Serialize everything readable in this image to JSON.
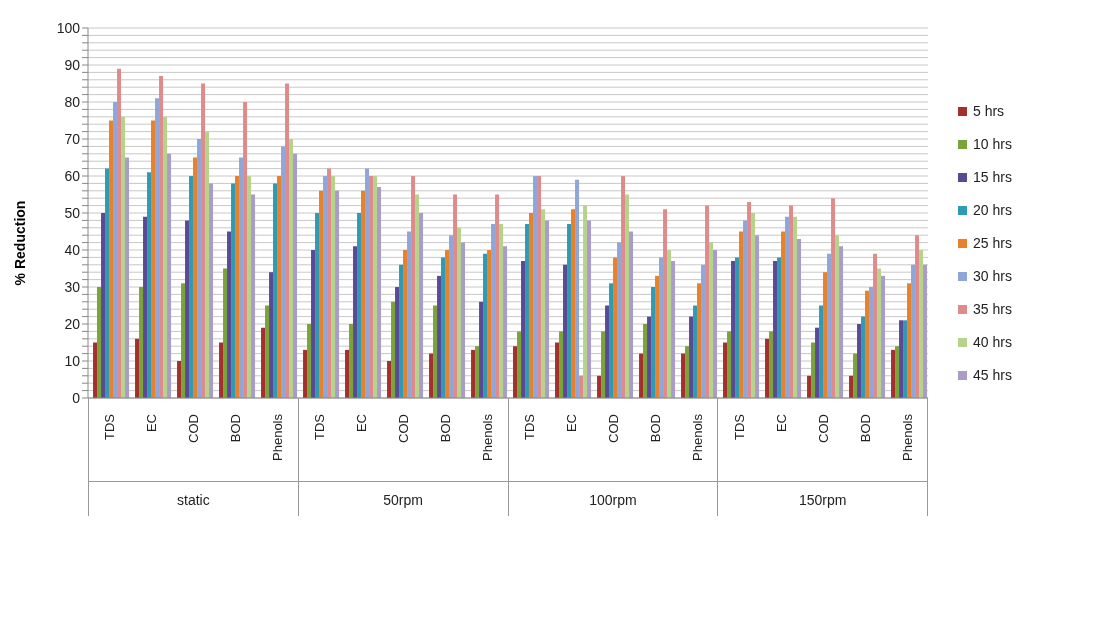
{
  "chart_data": {
    "type": "bar",
    "ylabel": "% Reduction",
    "categories": [
      "TDS",
      "EC",
      "COD",
      "BOD",
      "Phenols",
      "TDS",
      "EC",
      "COD",
      "BOD",
      "Phenols",
      "TDS",
      "EC",
      "COD",
      "BOD",
      "Phenols",
      "TDS",
      "EC",
      "COD",
      "BOD",
      "Phenols"
    ],
    "annotations": [
      "static",
      "50rpm",
      "100rpm",
      "150rpm"
    ],
    "series": [
      {
        "name": "5 hrs",
        "color": "#a3302c",
        "values": [
          15,
          16,
          10,
          15,
          19,
          13,
          13,
          10,
          12,
          13,
          14,
          15,
          6,
          12,
          12,
          15,
          16,
          6,
          6,
          13
        ]
      },
      {
        "name": "10 hrs",
        "color": "#7aa33c",
        "values": [
          30,
          30,
          31,
          35,
          25,
          20,
          20,
          26,
          25,
          14,
          18,
          18,
          18,
          20,
          14,
          18,
          18,
          15,
          12,
          14
        ]
      },
      {
        "name": "15 hrs",
        "color": "#5a4a93",
        "values": [
          50,
          49,
          48,
          45,
          34,
          40,
          41,
          30,
          33,
          26,
          37,
          36,
          25,
          22,
          22,
          37,
          37,
          19,
          20,
          21
        ]
      },
      {
        "name": "20 hrs",
        "color": "#2e9ab4",
        "values": [
          62,
          61,
          60,
          58,
          58,
          50,
          50,
          36,
          38,
          39,
          47,
          47,
          31,
          30,
          25,
          38,
          38,
          25,
          22,
          21
        ]
      },
      {
        "name": "25 hrs",
        "color": "#e8812c",
        "values": [
          75,
          75,
          65,
          60,
          60,
          56,
          56,
          40,
          40,
          40,
          50,
          51,
          38,
          33,
          31,
          45,
          45,
          34,
          29,
          31
        ]
      },
      {
        "name": "30 hrs",
        "color": "#8ea6d8",
        "values": [
          80,
          81,
          70,
          65,
          68,
          60,
          62,
          45,
          44,
          47,
          60,
          59,
          42,
          38,
          36,
          48,
          49,
          39,
          30,
          36
        ]
      },
      {
        "name": "35 hrs",
        "color": "#e08b8b",
        "values": [
          89,
          87,
          85,
          80,
          85,
          62,
          60,
          60,
          55,
          55,
          60,
          6,
          60,
          51,
          52,
          53,
          52,
          54,
          39,
          44
        ]
      },
      {
        "name": "40 hrs",
        "color": "#b6d38c",
        "values": [
          76,
          76,
          72,
          60,
          70,
          60,
          60,
          55,
          46,
          47,
          51,
          52,
          55,
          40,
          42,
          50,
          49,
          44,
          35,
          40
        ]
      },
      {
        "name": "45 hrs",
        "color": "#a99cc9",
        "values": [
          65,
          66,
          58,
          55,
          66,
          56,
          57,
          50,
          42,
          41,
          48,
          48,
          45,
          37,
          40,
          44,
          43,
          41,
          33,
          36
        ]
      }
    ],
    "ylim": [
      0,
      100
    ],
    "yticks": [
      0,
      {
        "value": 2,
        "label": null
      },
      {
        "value": 4,
        "label": null
      },
      {
        "value": 6,
        "label": null
      },
      {
        "value": 8,
        "label": null
      },
      10,
      {
        "value": 12,
        "label": null
      },
      {
        "value": 14,
        "label": null
      },
      {
        "value": 16,
        "label": null
      },
      {
        "value": 18,
        "label": null
      },
      20,
      {
        "value": 22,
        "label": null
      },
      {
        "value": 24,
        "label": null
      },
      {
        "value": 26,
        "label": null
      },
      {
        "value": 28,
        "label": null
      },
      30,
      {
        "value": 32,
        "label": null
      },
      {
        "value": 34,
        "label": null
      },
      {
        "value": 36,
        "label": null
      },
      {
        "value": 38,
        "label": null
      },
      40,
      {
        "value": 42,
        "label": null
      },
      {
        "value": 44,
        "label": null
      },
      {
        "value": 46,
        "label": null
      },
      {
        "value": 48,
        "label": null
      },
      50,
      {
        "value": 52,
        "label": null
      },
      {
        "value": 54,
        "label": null
      },
      {
        "value": 56,
        "label": null
      },
      {
        "value": 58,
        "label": null
      },
      60,
      {
        "value": 62,
        "label": null
      },
      {
        "value": 64,
        "label": null
      },
      {
        "value": 66,
        "label": null
      },
      {
        "value": 68,
        "label": null
      },
      70,
      {
        "value": 72,
        "label": null
      },
      {
        "value": 74,
        "label": null
      },
      {
        "value": 76,
        "label": null
      },
      {
        "value": 78,
        "label": null
      },
      80,
      {
        "value": 82,
        "label": null
      },
      {
        "value": 84,
        "label": null
      },
      {
        "value": 86,
        "label": null
      },
      {
        "value": 88,
        "label": null
      },
      90,
      {
        "value": 92,
        "label": null
      },
      {
        "value": 94,
        "label": null
      },
      {
        "value": 96,
        "label": null
      },
      {
        "value": 98,
        "label": null
      },
      100
    ],
    "grid": "y",
    "legend": "right"
  }
}
